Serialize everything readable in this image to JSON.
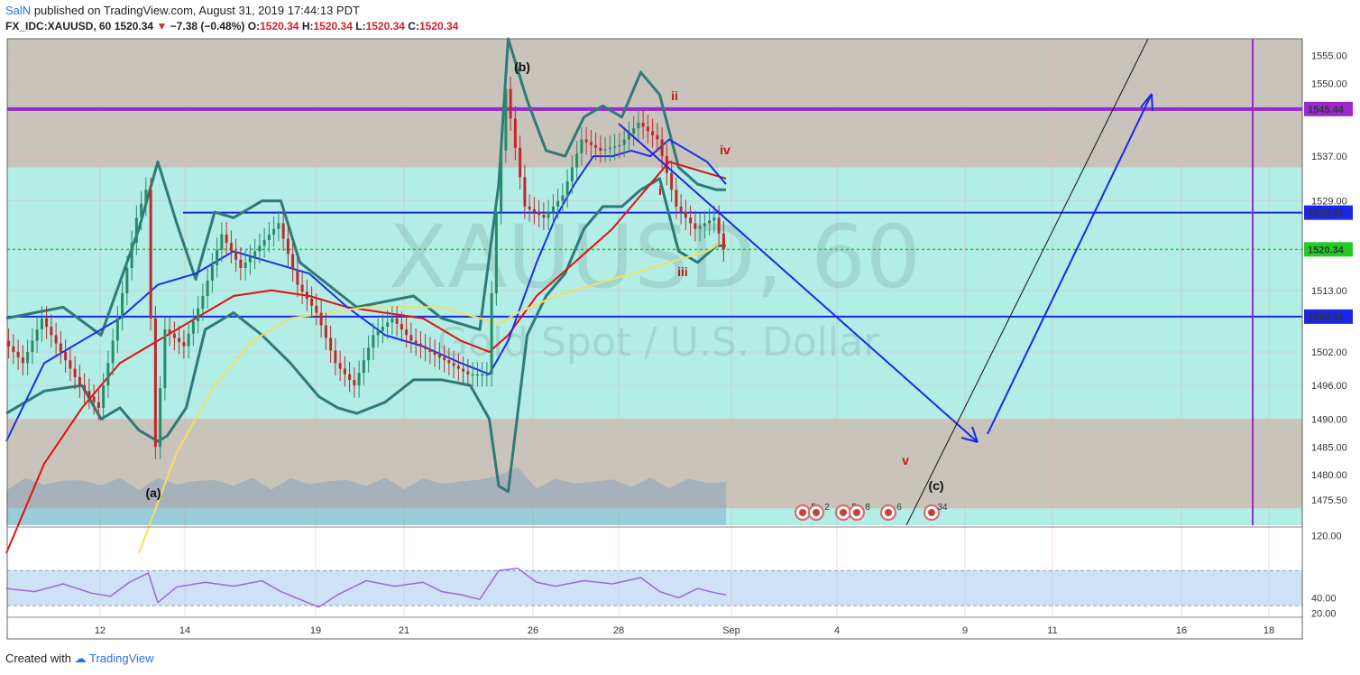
{
  "header": {
    "author": "SalN",
    "published": "published on TradingView.com, August 31, 2019 17:44:13 PDT",
    "symbol": "FX_IDC:XAUUSD, 60",
    "last": "1520.34",
    "change": "−7.38 (−0.48%)",
    "o_label": "O:",
    "o": "1520.34",
    "h_label": "H:",
    "h": "1520.34",
    "l_label": "L:",
    "l": "1520.34",
    "c_label": "C:",
    "c": "1520.34"
  },
  "watermark": {
    "symbol": "XAUUSD, 60",
    "name": "Gold Spot / U.S. Dollar"
  },
  "footer": {
    "created": "Created with",
    "brand": "TradingView"
  },
  "colors": {
    "zone_grey": "#c8c4bc",
    "zone_cyan": "#b2ede6",
    "resistance_line": "#9c27d0",
    "blue_line": "#1c27e6",
    "green_dotted": "#22cc22",
    "wave_label_red": "#cc1111",
    "bollinger": "#2e7a78",
    "ema_red": "#e01010",
    "sma_blue": "#1c2ee6",
    "sma_yellow": "#f3e060",
    "rsi": "#9a6ad0"
  },
  "chart_data": [
    {
      "type": "line",
      "title": "XAUUSD, 60",
      "x_ticks": [
        "12",
        "14",
        "19",
        "21",
        "26",
        "28",
        "Sep",
        "4",
        "9",
        "11",
        "16",
        "18"
      ],
      "y_ticks": [
        "1555.00",
        "1550.00",
        "1537.00",
        "1529.00",
        "1513.00",
        "1502.00",
        "1496.00",
        "1490.00",
        "1485.00",
        "1480.00",
        "1475.50"
      ],
      "ylim": [
        1471,
        1558
      ],
      "price_path": [
        [
          0,
          1504
        ],
        [
          2,
          1500
        ],
        [
          4,
          1508
        ],
        [
          6,
          1502
        ],
        [
          8,
          1496
        ],
        [
          10,
          1492
        ],
        [
          12,
          1508
        ],
        [
          14,
          1526
        ],
        [
          15,
          1531
        ],
        [
          16,
          1485
        ],
        [
          17,
          1506
        ],
        [
          19,
          1503
        ],
        [
          21,
          1512
        ],
        [
          23,
          1523
        ],
        [
          25,
          1517
        ],
        [
          27,
          1521
        ],
        [
          29,
          1525
        ],
        [
          31,
          1514
        ],
        [
          33,
          1509
        ],
        [
          35,
          1500
        ],
        [
          37,
          1496
        ],
        [
          39,
          1505
        ],
        [
          41,
          1508
        ],
        [
          43,
          1504
        ],
        [
          45,
          1502
        ],
        [
          47,
          1500
        ],
        [
          49,
          1498
        ],
        [
          51,
          1498
        ],
        [
          52,
          1527
        ],
        [
          53,
          1549
        ],
        [
          55,
          1528
        ],
        [
          57,
          1526
        ],
        [
          59,
          1530
        ],
        [
          61,
          1540
        ],
        [
          63,
          1538
        ],
        [
          65,
          1539
        ],
        [
          67,
          1543
        ],
        [
          69,
          1540
        ],
        [
          71,
          1528
        ],
        [
          73,
          1524
        ],
        [
          75,
          1526
        ],
        [
          76,
          1520.34
        ]
      ],
      "series": [
        {
          "name": "",
          "kind": "bollinger-upper",
          "values": [
            [
              0,
              1508
            ],
            [
              6,
              1510
            ],
            [
              10,
              1505
            ],
            [
              14,
              1524
            ],
            [
              16,
              1536
            ],
            [
              18,
              1525
            ],
            [
              20,
              1515
            ],
            [
              22,
              1527
            ],
            [
              24,
              1526
            ],
            [
              27,
              1529
            ],
            [
              29,
              1529
            ],
            [
              31,
              1518
            ],
            [
              34,
              1514
            ],
            [
              37,
              1510
            ],
            [
              40,
              1511
            ],
            [
              43,
              1512
            ],
            [
              46,
              1508
            ],
            [
              50,
              1506
            ],
            [
              52,
              1532
            ],
            [
              53,
              1558
            ],
            [
              55,
              1547
            ],
            [
              57,
              1538
            ],
            [
              59,
              1537
            ],
            [
              61,
              1544
            ],
            [
              63,
              1546
            ],
            [
              65,
              1544
            ],
            [
              67,
              1552
            ],
            [
              69,
              1548
            ],
            [
              71,
              1535
            ],
            [
              73,
              1532
            ],
            [
              75,
              1531
            ],
            [
              76,
              1531
            ]
          ]
        },
        {
          "name": "",
          "kind": "bollinger-lower",
          "values": [
            [
              0,
              1491
            ],
            [
              4,
              1495
            ],
            [
              8,
              1496
            ],
            [
              10,
              1490
            ],
            [
              12,
              1492
            ],
            [
              14,
              1488
            ],
            [
              16,
              1486
            ],
            [
              17,
              1487
            ],
            [
              19,
              1492
            ],
            [
              21,
              1506
            ],
            [
              24,
              1509
            ],
            [
              27,
              1505
            ],
            [
              30,
              1500
            ],
            [
              33,
              1494
            ],
            [
              35,
              1492
            ],
            [
              37,
              1491
            ],
            [
              40,
              1493
            ],
            [
              43,
              1497
            ],
            [
              46,
              1497
            ],
            [
              49,
              1496
            ],
            [
              51,
              1490
            ],
            [
              52,
              1478
            ],
            [
              53,
              1477
            ],
            [
              55,
              1505
            ],
            [
              57,
              1512
            ],
            [
              59,
              1516
            ],
            [
              61,
              1524
            ],
            [
              63,
              1528
            ],
            [
              65,
              1528
            ],
            [
              67,
              1531
            ],
            [
              69,
              1533
            ],
            [
              71,
              1520
            ],
            [
              73,
              1518
            ],
            [
              75,
              1521
            ],
            [
              76,
              1521
            ]
          ]
        },
        {
          "name": "",
          "kind": "ema-red",
          "values": [
            [
              0,
              1466
            ],
            [
              4,
              1482
            ],
            [
              8,
              1492
            ],
            [
              12,
              1500
            ],
            [
              16,
              1504
            ],
            [
              20,
              1508
            ],
            [
              24,
              1512
            ],
            [
              28,
              1513
            ],
            [
              32,
              1512
            ],
            [
              36,
              1510
            ],
            [
              40,
              1509
            ],
            [
              44,
              1508
            ],
            [
              48,
              1504
            ],
            [
              51,
              1502
            ],
            [
              53,
              1505
            ],
            [
              56,
              1512
            ],
            [
              60,
              1518
            ],
            [
              64,
              1524
            ],
            [
              66,
              1528
            ],
            [
              68,
              1532
            ],
            [
              70,
              1536
            ],
            [
              72,
              1535
            ],
            [
              74,
              1534
            ],
            [
              76,
              1533
            ]
          ]
        },
        {
          "name": "",
          "kind": "sma-blue",
          "values": [
            [
              0,
              1486
            ],
            [
              4,
              1500
            ],
            [
              8,
              1504
            ],
            [
              12,
              1508
            ],
            [
              16,
              1514
            ],
            [
              20,
              1516
            ],
            [
              24,
              1520
            ],
            [
              28,
              1518
            ],
            [
              32,
              1516
            ],
            [
              36,
              1510
            ],
            [
              40,
              1505
            ],
            [
              44,
              1503
            ],
            [
              48,
              1500
            ],
            [
              51,
              1498
            ],
            [
              53,
              1504
            ],
            [
              56,
              1518
            ],
            [
              58,
              1526
            ],
            [
              60,
              1532
            ],
            [
              62,
              1537
            ],
            [
              64,
              1537
            ],
            [
              66,
              1538
            ],
            [
              68,
              1537
            ],
            [
              70,
              1540
            ],
            [
              72,
              1538
            ],
            [
              74,
              1536
            ],
            [
              76,
              1532
            ]
          ]
        },
        {
          "name": "",
          "kind": "sma-yellow",
          "values": [
            [
              14,
              1466
            ],
            [
              18,
              1484
            ],
            [
              22,
              1496
            ],
            [
              26,
              1504
            ],
            [
              30,
              1508
            ],
            [
              34,
              1509
            ],
            [
              38,
              1510
            ],
            [
              42,
              1510
            ],
            [
              46,
              1510
            ],
            [
              50,
              1508
            ],
            [
              52,
              1507
            ],
            [
              54,
              1509
            ],
            [
              58,
              1512
            ],
            [
              62,
              1514
            ],
            [
              66,
              1516
            ],
            [
              70,
              1518
            ],
            [
              74,
              1520
            ],
            [
              76,
              1522
            ]
          ]
        }
      ],
      "horizontal_levels": [
        {
          "label": "1545.44",
          "value": 1545.44,
          "color": "#9c27d0"
        },
        {
          "label": "1526.91",
          "value": 1526.91,
          "color": "#1c27e6"
        },
        {
          "label": "1520.34",
          "value": 1520.34,
          "color": "#22cc22"
        },
        {
          "label": "1508.31",
          "value": 1508.31,
          "color": "#1c27e6"
        }
      ],
      "wave_labels": [
        {
          "text": "(a)",
          "color": "#111111"
        },
        {
          "text": "(b)",
          "color": "#111111"
        },
        {
          "text": "(c)",
          "color": "#111111"
        },
        {
          "text": "i",
          "color": "#cc1111"
        },
        {
          "text": "ii",
          "color": "#cc1111"
        },
        {
          "text": "iii",
          "color": "#cc1111"
        },
        {
          "text": "iv",
          "color": "#cc1111"
        },
        {
          "text": "v",
          "color": "#cc1111"
        }
      ],
      "event_badges": [
        "5",
        "2",
        "5",
        "8",
        "6",
        "34"
      ]
    },
    {
      "type": "line",
      "title": "",
      "y_ticks": [
        "120.00",
        "40.00",
        "20.00"
      ],
      "ylim": [
        15,
        130
      ],
      "band": [
        30,
        75
      ],
      "series": [
        {
          "name": "",
          "kind": "rsi",
          "values": [
            [
              0,
              52
            ],
            [
              3,
              48
            ],
            [
              6,
              58
            ],
            [
              9,
              46
            ],
            [
              11,
              42
            ],
            [
              13,
              60
            ],
            [
              15,
              72
            ],
            [
              16,
              34
            ],
            [
              18,
              54
            ],
            [
              21,
              60
            ],
            [
              24,
              55
            ],
            [
              27,
              62
            ],
            [
              29,
              48
            ],
            [
              31,
              38
            ],
            [
              33,
              28
            ],
            [
              35,
              44
            ],
            [
              38,
              62
            ],
            [
              41,
              55
            ],
            [
              44,
              60
            ],
            [
              46,
              48
            ],
            [
              48,
              44
            ],
            [
              50,
              38
            ],
            [
              52,
              75
            ],
            [
              54,
              78
            ],
            [
              56,
              60
            ],
            [
              58,
              55
            ],
            [
              61,
              62
            ],
            [
              64,
              58
            ],
            [
              67,
              66
            ],
            [
              69,
              48
            ],
            [
              71,
              40
            ],
            [
              73,
              52
            ],
            [
              75,
              46
            ],
            [
              76,
              44
            ]
          ]
        }
      ]
    }
  ]
}
